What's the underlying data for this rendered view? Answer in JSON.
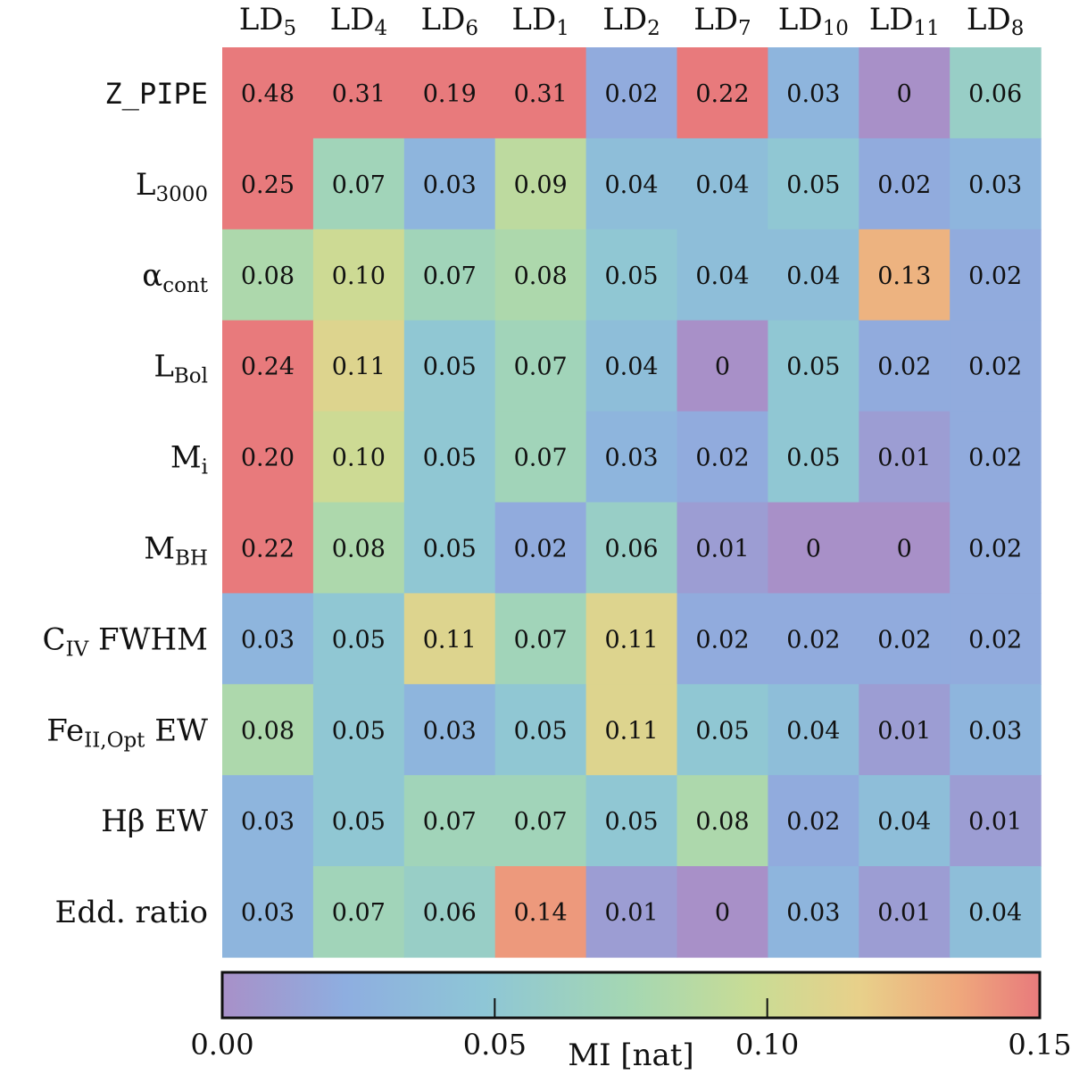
{
  "chart_data": {
    "type": "heatmap",
    "columns": [
      {
        "base": "LD",
        "sub": "5"
      },
      {
        "base": "LD",
        "sub": "4"
      },
      {
        "base": "LD",
        "sub": "6"
      },
      {
        "base": "LD",
        "sub": "1"
      },
      {
        "base": "LD",
        "sub": "2"
      },
      {
        "base": "LD",
        "sub": "7"
      },
      {
        "base": "LD",
        "sub": "10"
      },
      {
        "base": "LD",
        "sub": "11"
      },
      {
        "base": "LD",
        "sub": "8"
      }
    ],
    "rows": [
      {
        "base": "Z_PIPE",
        "sub": "",
        "suffix": "",
        "mono": true
      },
      {
        "base": "L",
        "sub": "3000",
        "suffix": ""
      },
      {
        "base": "α",
        "sub": "cont",
        "suffix": ""
      },
      {
        "base": "L",
        "sub": "Bol",
        "suffix": ""
      },
      {
        "base": "M",
        "sub": "i",
        "suffix": ""
      },
      {
        "base": "M",
        "sub": "BH",
        "suffix": ""
      },
      {
        "base": "C",
        "sub": "IV",
        "suffix": " FWHM"
      },
      {
        "base": "Fe",
        "sub": "II,Opt",
        "suffix": " EW"
      },
      {
        "base": "Hβ EW",
        "sub": "",
        "suffix": ""
      },
      {
        "base": "Edd. ratio",
        "sub": "",
        "suffix": ""
      }
    ],
    "values": [
      [
        0.48,
        0.31,
        0.19,
        0.31,
        0.02,
        0.22,
        0.03,
        0,
        0.06
      ],
      [
        0.25,
        0.07,
        0.03,
        0.09,
        0.04,
        0.04,
        0.05,
        0.02,
        0.03
      ],
      [
        0.08,
        0.1,
        0.07,
        0.08,
        0.05,
        0.04,
        0.04,
        0.13,
        0.02
      ],
      [
        0.24,
        0.11,
        0.05,
        0.07,
        0.04,
        0,
        0.05,
        0.02,
        0.02
      ],
      [
        0.2,
        0.1,
        0.05,
        0.07,
        0.03,
        0.02,
        0.05,
        0.01,
        0.02
      ],
      [
        0.22,
        0.08,
        0.05,
        0.02,
        0.06,
        0.01,
        0,
        0,
        0.02
      ],
      [
        0.03,
        0.05,
        0.11,
        0.07,
        0.11,
        0.02,
        0.02,
        0.02,
        0.02
      ],
      [
        0.08,
        0.05,
        0.03,
        0.05,
        0.11,
        0.05,
        0.04,
        0.01,
        0.03
      ],
      [
        0.03,
        0.05,
        0.07,
        0.07,
        0.05,
        0.08,
        0.02,
        0.04,
        0.01
      ],
      [
        0.03,
        0.07,
        0.06,
        0.14,
        0.01,
        0,
        0.03,
        0.01,
        0.04
      ]
    ],
    "display_values": [
      [
        "0.48",
        "0.31",
        "0.19",
        "0.31",
        "0.02",
        "0.22",
        "0.03",
        "0",
        "0.06"
      ],
      [
        "0.25",
        "0.07",
        "0.03",
        "0.09",
        "0.04",
        "0.04",
        "0.05",
        "0.02",
        "0.03"
      ],
      [
        "0.08",
        "0.10",
        "0.07",
        "0.08",
        "0.05",
        "0.04",
        "0.04",
        "0.13",
        "0.02"
      ],
      [
        "0.24",
        "0.11",
        "0.05",
        "0.07",
        "0.04",
        "0",
        "0.05",
        "0.02",
        "0.02"
      ],
      [
        "0.20",
        "0.10",
        "0.05",
        "0.07",
        "0.03",
        "0.02",
        "0.05",
        "0.01",
        "0.02"
      ],
      [
        "0.22",
        "0.08",
        "0.05",
        "0.02",
        "0.06",
        "0.01",
        "0",
        "0",
        "0.02"
      ],
      [
        "0.03",
        "0.05",
        "0.11",
        "0.07",
        "0.11",
        "0.02",
        "0.02",
        "0.02",
        "0.02"
      ],
      [
        "0.08",
        "0.05",
        "0.03",
        "0.05",
        "0.11",
        "0.05",
        "0.04",
        "0.01",
        "0.03"
      ],
      [
        "0.03",
        "0.05",
        "0.07",
        "0.07",
        "0.05",
        "0.08",
        "0.02",
        "0.04",
        "0.01"
      ],
      [
        "0.03",
        "0.07",
        "0.06",
        "0.14",
        "0.01",
        "0",
        "0.03",
        "0.01",
        "0.04"
      ]
    ],
    "colorbar": {
      "label": "MI [nat]",
      "range": [
        0.0,
        0.15
      ],
      "ticks": [
        0.0,
        0.05,
        0.1,
        0.15
      ],
      "tick_labels": [
        "0.00",
        "0.05",
        "0.10",
        "0.15"
      ],
      "position": "bottom"
    },
    "colormap_stops": [
      [
        0.0,
        "#a890c8"
      ],
      [
        0.15,
        "#8eaee0"
      ],
      [
        0.32,
        "#8ec6d6"
      ],
      [
        0.5,
        "#a5d7b2"
      ],
      [
        0.65,
        "#c9dc95"
      ],
      [
        0.78,
        "#e8d08a"
      ],
      [
        0.9,
        "#efa87c"
      ],
      [
        1.0,
        "#e87a7c"
      ]
    ]
  }
}
